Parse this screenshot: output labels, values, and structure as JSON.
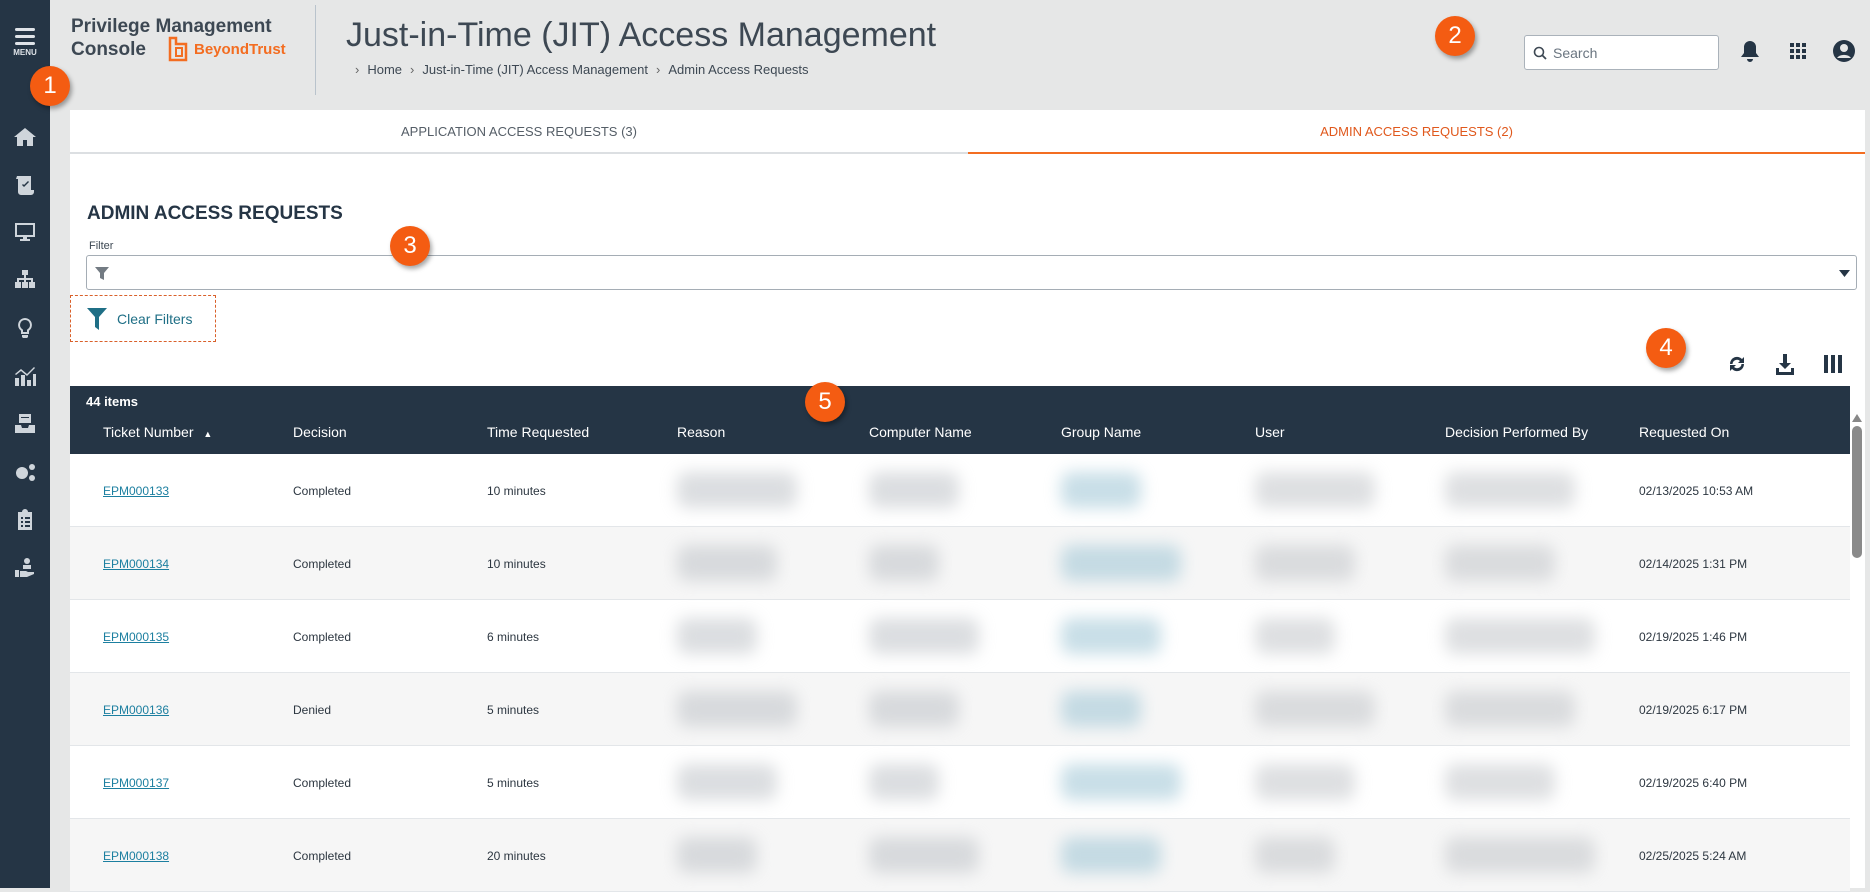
{
  "sidebar": {
    "menu_label": "MENU",
    "items": [
      "home-icon",
      "policy-icon",
      "computer-icon",
      "hierarchy-icon",
      "lightbulb-icon",
      "analytics-icon",
      "inbox-icon",
      "gears-icon",
      "clipboard-icon",
      "hand-user-icon"
    ]
  },
  "header": {
    "brand_line1": "Privilege Management",
    "brand_line2": "Console",
    "logo_text": "BeyondTrust",
    "title": "Just-in-Time (JIT) Access Management",
    "breadcrumb": [
      "Home",
      "Just-in-Time (JIT) Access Management",
      "Admin Access Requests"
    ],
    "search_placeholder": "Search"
  },
  "tabs": [
    {
      "label": "APPLICATION ACCESS REQUESTS (3)",
      "active": false
    },
    {
      "label": "ADMIN ACCESS REQUESTS (2)",
      "active": true
    }
  ],
  "main": {
    "section_title": "ADMIN ACCESS REQUESTS",
    "filter_label": "Filter",
    "filter_value": "",
    "clear_filters": "Clear Filters"
  },
  "table": {
    "item_count": "44 items",
    "columns": [
      "Ticket Number",
      "Decision",
      "Time Requested",
      "Reason",
      "Computer Name",
      "Group Name",
      "User",
      "Decision Performed By",
      "Requested On"
    ],
    "sort": {
      "column": "Ticket Number",
      "direction": "ascending"
    },
    "rows": [
      {
        "ticket": "EPM000133",
        "decision": "Completed",
        "time": "10 minutes",
        "requested_on": "02/13/2025 10:53 AM"
      },
      {
        "ticket": "EPM000134",
        "decision": "Completed",
        "time": "10 minutes",
        "requested_on": "02/14/2025 1:31 PM"
      },
      {
        "ticket": "EPM000135",
        "decision": "Completed",
        "time": "6 minutes",
        "requested_on": "02/19/2025 1:46 PM"
      },
      {
        "ticket": "EPM000136",
        "decision": "Denied",
        "time": "5 minutes",
        "requested_on": "02/19/2025 6:17 PM"
      },
      {
        "ticket": "EPM000137",
        "decision": "Completed",
        "time": "5 minutes",
        "requested_on": "02/19/2025 6:40 PM"
      },
      {
        "ticket": "EPM000138",
        "decision": "Completed",
        "time": "20 minutes",
        "requested_on": "02/25/2025 5:24 AM"
      }
    ]
  },
  "callouts": [
    "1",
    "2",
    "3",
    "4",
    "5"
  ],
  "colors": {
    "sidebar": "#253545",
    "accent": "#f36d21",
    "link": "#1c7fa0",
    "callout": "#f45c12"
  }
}
